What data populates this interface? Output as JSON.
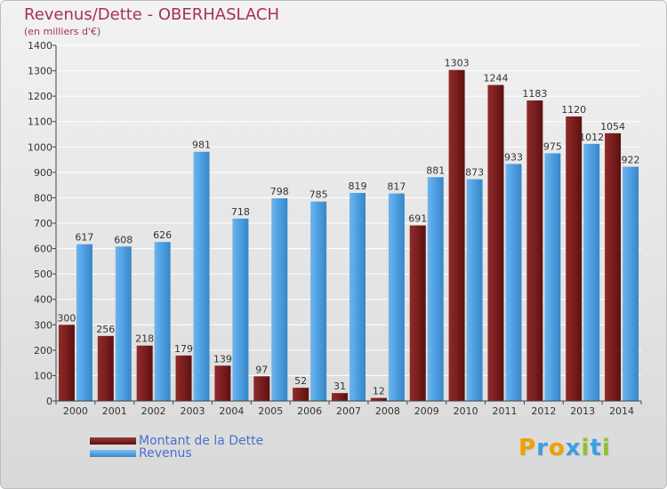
{
  "title": "Revenus/Dette - OBERHASLACH",
  "subtitle": "(en milliers d'€)",
  "legend": [
    {
      "label": "Montant de la Dette",
      "color": "#7a1e1e"
    },
    {
      "label": "Revenus",
      "color": "#4d9ee0"
    }
  ],
  "logo": {
    "letters": [
      "P",
      "r",
      "o",
      "x",
      "i",
      "t",
      "i"
    ],
    "colors": [
      "#f0a000",
      "#3aa0e0",
      "#f0a000",
      "#3aa0e0",
      "#90c030",
      "#3aa0e0",
      "#90c030"
    ]
  },
  "colors": {
    "dette": "#7a1e1e",
    "revenus": "#4d9ee0",
    "title": "#a8305a"
  },
  "chart_data": {
    "type": "bar",
    "categories": [
      "2000",
      "2001",
      "2002",
      "2003",
      "2004",
      "2005",
      "2006",
      "2007",
      "2008",
      "2009",
      "2010",
      "2011",
      "2012",
      "2013",
      "2014"
    ],
    "series": [
      {
        "name": "Montant de la Dette",
        "values": [
          300,
          256,
          218,
          179,
          139,
          97,
          52,
          31,
          12,
          691,
          1303,
          1244,
          1183,
          1120,
          1054
        ]
      },
      {
        "name": "Revenus",
        "values": [
          617,
          608,
          626,
          981,
          718,
          798,
          785,
          819,
          817,
          881,
          873,
          933,
          975,
          1012,
          922
        ]
      }
    ],
    "data_labels": [
      [
        "300",
        "256",
        "218",
        "179",
        "139",
        "97",
        "52",
        "31",
        "12",
        "691",
        "1303",
        "1244",
        "1183",
        "1120",
        "1054"
      ],
      [
        "617",
        "608",
        "626",
        "981",
        "718",
        "798",
        "785",
        "819",
        "817",
        "881",
        "873",
        "933",
        "975",
        "1012",
        "922"
      ]
    ],
    "ylim": [
      0,
      1400
    ],
    "yticks": [
      0,
      100,
      200,
      300,
      400,
      500,
      600,
      700,
      800,
      900,
      1000,
      1100,
      1200,
      1300,
      1400
    ],
    "grid": true,
    "xlabel": "",
    "ylabel": ""
  }
}
